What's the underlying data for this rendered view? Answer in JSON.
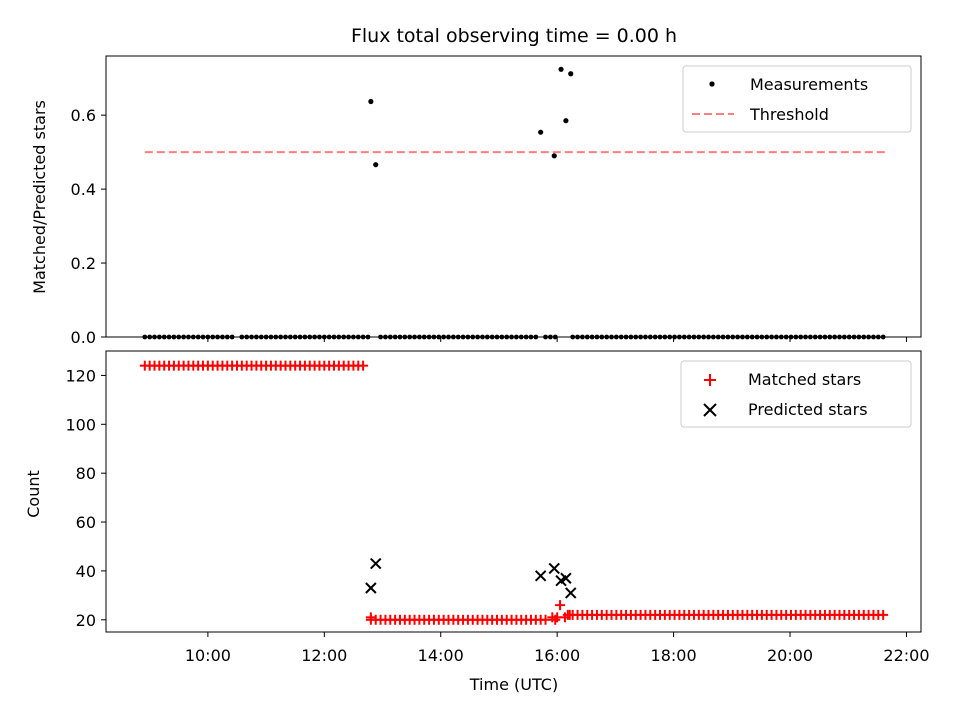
{
  "chart_data": [
    {
      "type": "scatter",
      "title": "Flux total observing time = 0.00 h",
      "xlabel": "",
      "ylabel": "Matched/Predicted stars",
      "xlim": [
        "08:15",
        "22:15"
      ],
      "ylim": [
        0,
        0.76
      ],
      "yticks": [
        "0.0",
        "0.2",
        "0.4",
        "0.6"
      ],
      "legend": "top-right",
      "grid": false,
      "threshold": {
        "name": "Threshold",
        "y": 0.5,
        "x": [
          "08:55",
          "21:40"
        ],
        "color": "#ff7f7f"
      },
      "series": [
        {
          "name": "Measurements",
          "color": "#000000",
          "marker": "dot",
          "points": [
            [
              "12:48",
              0.637
            ],
            [
              "12:53",
              0.466
            ],
            [
              "15:43",
              0.554
            ],
            [
              "15:57",
              0.49
            ],
            [
              "16:04",
              0.724
            ],
            [
              "16:09",
              0.585
            ],
            [
              "16:14",
              0.712
            ]
          ],
          "zero_ranges": [
            [
              "08:55",
              "10:27"
            ],
            [
              "10:35",
              "12:45"
            ],
            [
              "12:58",
              "15:40"
            ],
            [
              "15:48",
              "16:00"
            ],
            [
              "16:16",
              "21:40"
            ]
          ]
        }
      ]
    },
    {
      "type": "scatter",
      "title": "",
      "xlabel": "Time (UTC)",
      "ylabel": "Count",
      "xlim": [
        "08:15",
        "22:15"
      ],
      "ylim": [
        15,
        130
      ],
      "yticks": [
        "20",
        "40",
        "60",
        "80",
        "100",
        "120"
      ],
      "xticks": [
        "10:00",
        "12:00",
        "14:00",
        "16:00",
        "18:00",
        "20:00",
        "22:00"
      ],
      "legend": "top-right",
      "grid": false,
      "series": [
        {
          "name": "Matched stars",
          "color": "#ff0000",
          "marker": "plus",
          "segments": [
            {
              "from": "08:55",
              "to": "12:43",
              "y": 124
            },
            {
              "from": "12:48",
              "to": "15:52",
              "y": 20
            },
            {
              "from": "15:55",
              "to": "16:03",
              "y": 21
            },
            {
              "from": "16:11",
              "to": "21:40",
              "y": 22
            }
          ],
          "points": [
            [
              "12:48",
              21
            ],
            [
              "15:58",
              20
            ],
            [
              "16:03",
              26
            ],
            [
              "16:08",
              21
            ],
            [
              "16:13",
              22
            ]
          ]
        },
        {
          "name": "Predicted stars",
          "color": "#000000",
          "marker": "x",
          "points": [
            [
              "12:48",
              33
            ],
            [
              "12:53",
              43
            ],
            [
              "15:43",
              38
            ],
            [
              "15:57",
              41
            ],
            [
              "16:04",
              36
            ],
            [
              "16:09",
              37
            ],
            [
              "16:14",
              31
            ]
          ]
        }
      ]
    }
  ]
}
